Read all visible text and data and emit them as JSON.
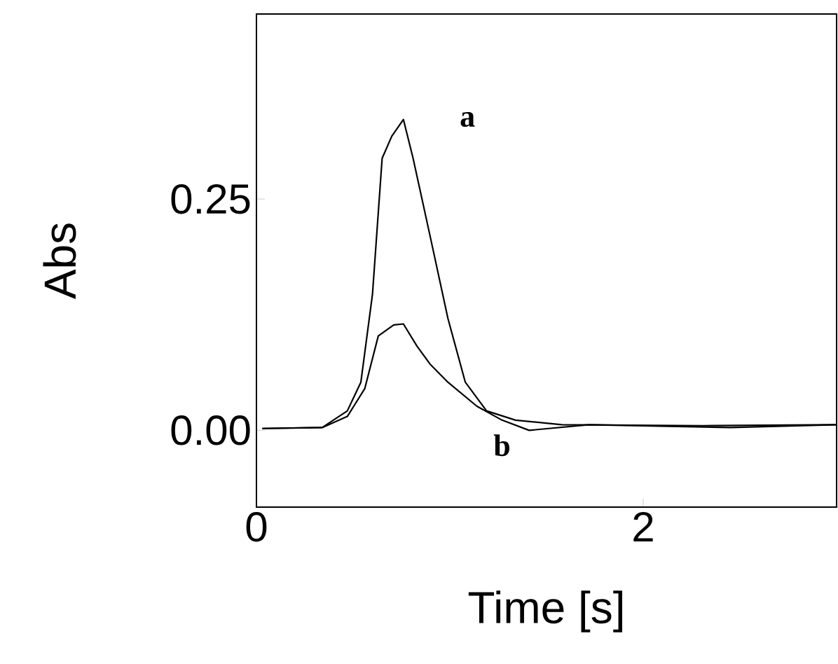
{
  "chart_data": {
    "type": "line",
    "xlabel": "Time [s]",
    "ylabel": "Abs",
    "xlim": [
      0,
      3.0
    ],
    "ylim": [
      -0.083,
      0.45
    ],
    "xticks": [
      0,
      2
    ],
    "yticks": [
      {
        "value": 0,
        "label": "0.00"
      },
      {
        "value": 0.25,
        "label": "0.25"
      }
    ],
    "grid": false,
    "legend": false,
    "marker": "none",
    "line_style": "solid",
    "series": [
      {
        "name": "a",
        "color": "#000000",
        "x": [
          0.03,
          0.34,
          0.47,
          0.54,
          0.6,
          0.65,
          0.7,
          0.76,
          0.81,
          0.9,
          0.99,
          1.08,
          1.19,
          1.34,
          1.58,
          2.31,
          3.0
        ],
        "values": [
          0.002,
          0.003,
          0.021,
          0.052,
          0.147,
          0.294,
          0.318,
          0.336,
          0.294,
          0.208,
          0.121,
          0.052,
          0.021,
          0.011,
          0.006,
          0.005,
          0.006
        ]
      },
      {
        "name": "b",
        "color": "#000000",
        "x": [
          0.03,
          0.34,
          0.47,
          0.56,
          0.63,
          0.71,
          0.76,
          0.83,
          0.9,
          0.99,
          1.14,
          1.27,
          1.41,
          1.72,
          2.45,
          3.0
        ],
        "values": [
          0.002,
          0.003,
          0.015,
          0.045,
          0.102,
          0.114,
          0.115,
          0.091,
          0.071,
          0.052,
          0.026,
          0.011,
          0.0,
          0.006,
          0.003,
          0.006
        ]
      }
    ]
  }
}
